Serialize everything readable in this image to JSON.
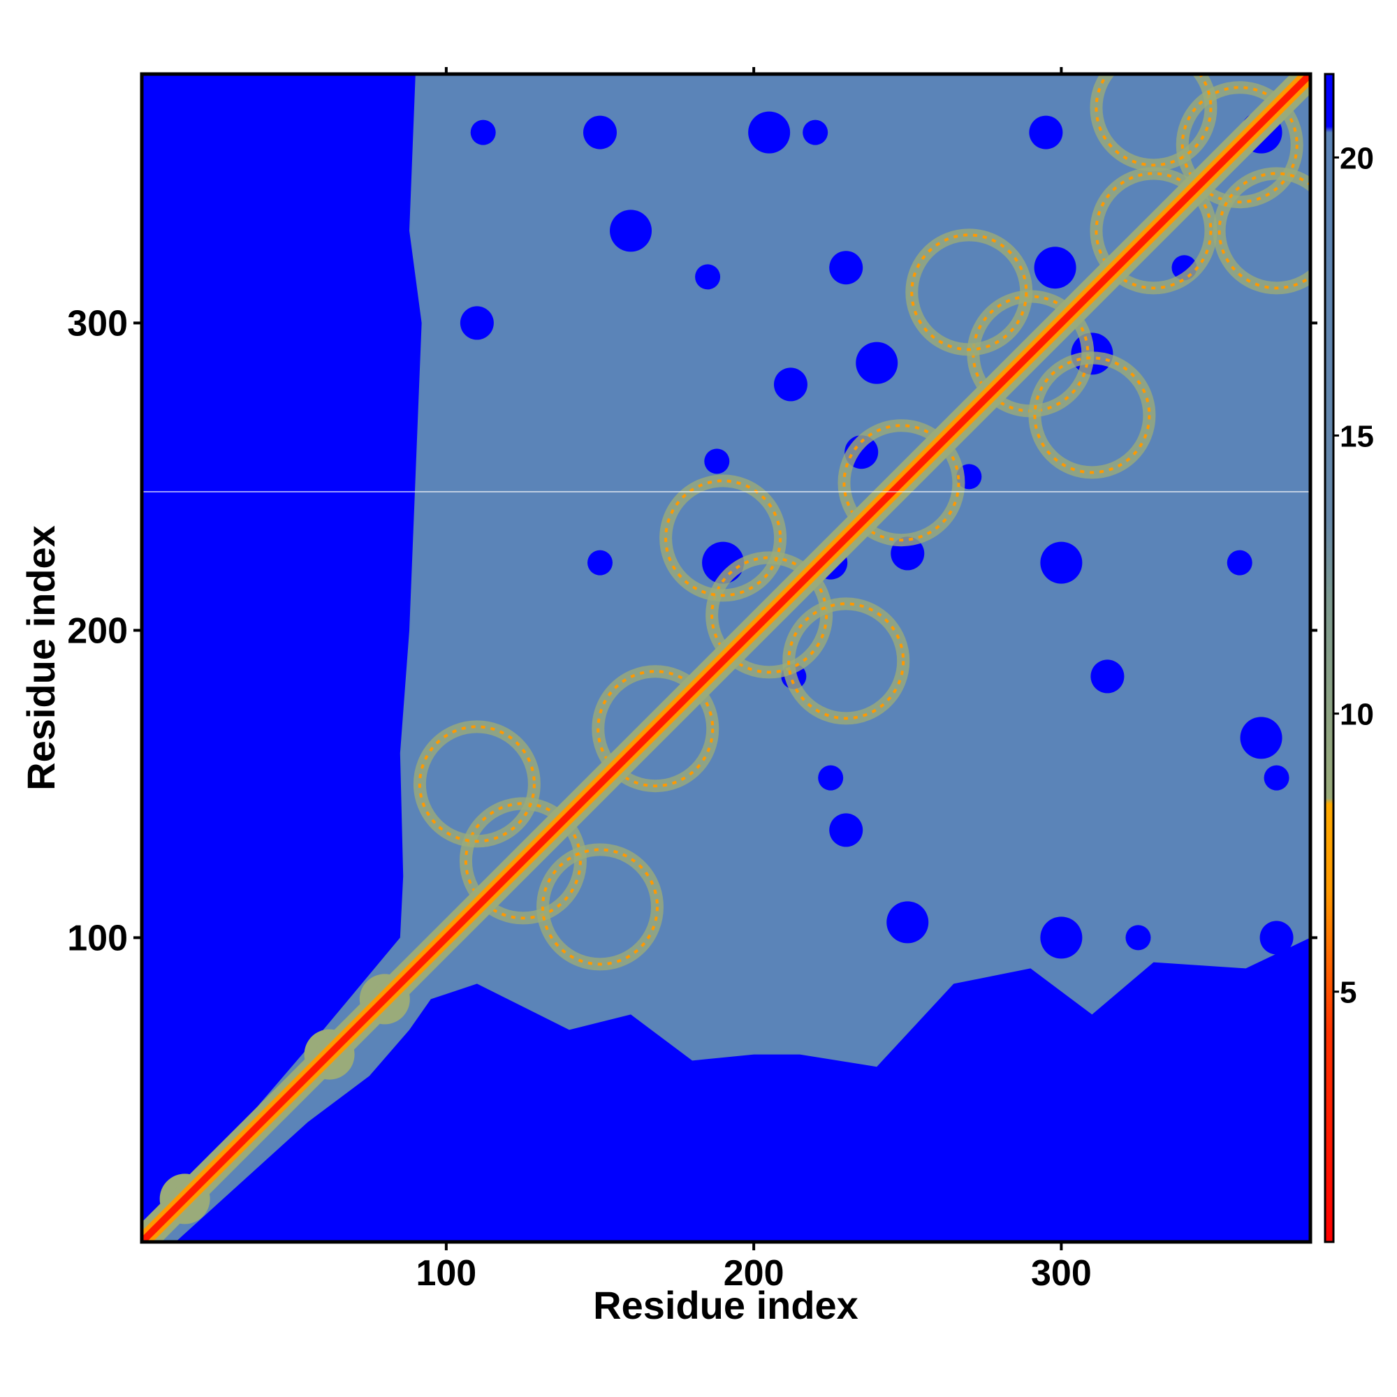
{
  "chart_data": {
    "type": "heatmap",
    "title": "",
    "xlabel": "Residue index",
    "ylabel": "Residue index",
    "xlim": [
      1,
      381
    ],
    "ylim": [
      1,
      381
    ],
    "x_ticks": [
      100,
      200,
      300
    ],
    "y_ticks": [
      100,
      200,
      300
    ],
    "colorbar": {
      "range": [
        0.5,
        21.5
      ],
      "ticks": [
        5,
        10,
        15,
        20
      ],
      "colors": {
        "near": "#ff0000",
        "mid": "#ff9900",
        "band": "#9aab7a",
        "far": "#5b84b8",
        "max": "#0000ff"
      }
    },
    "description_colors": {
      "background": "#0000ff",
      "interaction_region": "#5b84b8",
      "diagonal": "#ff1a00"
    },
    "grid": false,
    "legend": "colorbar-right"
  }
}
